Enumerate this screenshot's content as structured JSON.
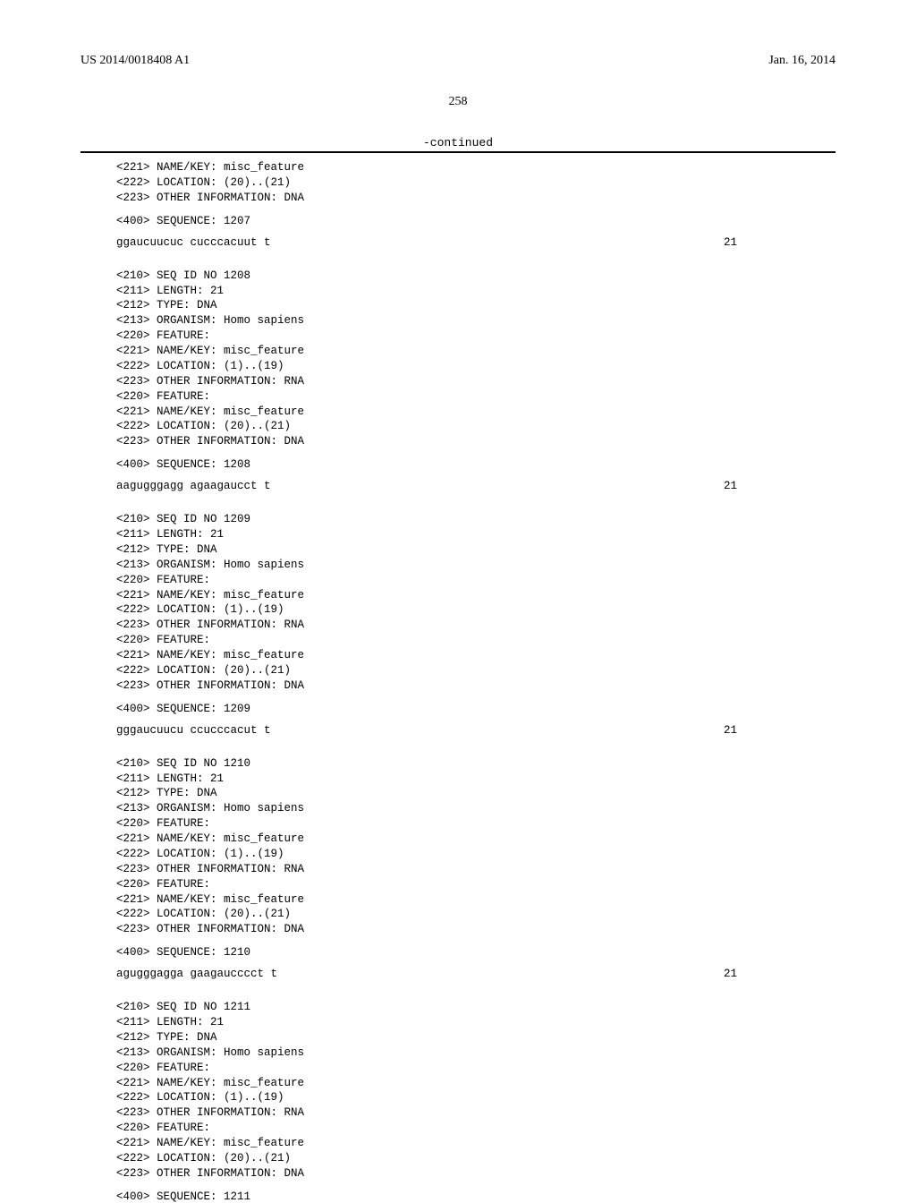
{
  "header": {
    "left": "US 2014/0018408 A1",
    "right": "Jan. 16, 2014"
  },
  "page_number": "258",
  "continued_label": "-continued",
  "partial_block": {
    "lines": [
      "<221> NAME/KEY: misc_feature",
      "<222> LOCATION: (20)..(21)",
      "<223> OTHER INFORMATION: DNA"
    ],
    "seq_label": "<400> SEQUENCE: 1207",
    "sequence": "ggaucuucuc cucccacuut t",
    "seq_len": "21"
  },
  "entries": [
    {
      "header_lines": [
        "<210> SEQ ID NO 1208",
        "<211> LENGTH: 21",
        "<212> TYPE: DNA",
        "<213> ORGANISM: Homo sapiens",
        "<220> FEATURE:",
        "<221> NAME/KEY: misc_feature",
        "<222> LOCATION: (1)..(19)",
        "<223> OTHER INFORMATION: RNA",
        "<220> FEATURE:",
        "<221> NAME/KEY: misc_feature",
        "<222> LOCATION: (20)..(21)",
        "<223> OTHER INFORMATION: DNA"
      ],
      "seq_label": "<400> SEQUENCE: 1208",
      "sequence": "aagugggagg agaagaucct t",
      "seq_len": "21"
    },
    {
      "header_lines": [
        "<210> SEQ ID NO 1209",
        "<211> LENGTH: 21",
        "<212> TYPE: DNA",
        "<213> ORGANISM: Homo sapiens",
        "<220> FEATURE:",
        "<221> NAME/KEY: misc_feature",
        "<222> LOCATION: (1)..(19)",
        "<223> OTHER INFORMATION: RNA",
        "<220> FEATURE:",
        "<221> NAME/KEY: misc_feature",
        "<222> LOCATION: (20)..(21)",
        "<223> OTHER INFORMATION: DNA"
      ],
      "seq_label": "<400> SEQUENCE: 1209",
      "sequence": "gggaucuucu ccucccacut t",
      "seq_len": "21"
    },
    {
      "header_lines": [
        "<210> SEQ ID NO 1210",
        "<211> LENGTH: 21",
        "<212> TYPE: DNA",
        "<213> ORGANISM: Homo sapiens",
        "<220> FEATURE:",
        "<221> NAME/KEY: misc_feature",
        "<222> LOCATION: (1)..(19)",
        "<223> OTHER INFORMATION: RNA",
        "<220> FEATURE:",
        "<221> NAME/KEY: misc_feature",
        "<222> LOCATION: (20)..(21)",
        "<223> OTHER INFORMATION: DNA"
      ],
      "seq_label": "<400> SEQUENCE: 1210",
      "sequence": "agugggagga gaagaucccct t",
      "seq_len": "21"
    },
    {
      "header_lines": [
        "<210> SEQ ID NO 1211",
        "<211> LENGTH: 21",
        "<212> TYPE: DNA",
        "<213> ORGANISM: Homo sapiens",
        "<220> FEATURE:",
        "<221> NAME/KEY: misc_feature",
        "<222> LOCATION: (1)..(19)",
        "<223> OTHER INFORMATION: RNA",
        "<220> FEATURE:",
        "<221> NAME/KEY: misc_feature",
        "<222> LOCATION: (20)..(21)",
        "<223> OTHER INFORMATION: DNA"
      ],
      "seq_label": "<400> SEQUENCE: 1211",
      "sequence": "",
      "seq_len": ""
    }
  ]
}
